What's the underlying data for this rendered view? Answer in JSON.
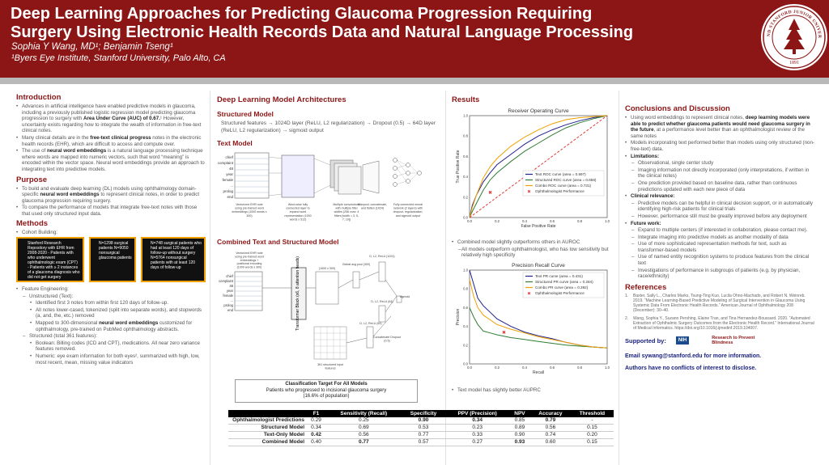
{
  "header": {
    "title": "Deep Learning Approaches for Predicting Glaucoma Progression Requiring Surgery Using Electronic Health Records Data and Natural Language Processing",
    "authors": "Sophia Y Wang, MD¹; Benjamin Tseng¹",
    "affiliation": "¹Byers Eye Institute, Stanford University, Palo Alto, CA",
    "seal_text": "LELAND STANFORD JUNIOR UNIVERSITY",
    "seal_year": "1891"
  },
  "intro": {
    "title": "Introduction",
    "bullets": [
      "Advances in artificial intelligence have enabled predictive models in glaucoma, including a previously published logistic regression model predicting glaucoma progression to surgery with Area Under Curve (AUC) of 0.67.¹ However, uncertainty exists regarding how to integrate the wealth of information in free-text clinical notes.",
      "Many clinical details are in the free-text clinical progress notes in the electronic health records (EHR), which are difficult to access and compute over.",
      "The use of neural word embeddings is a natural language processing technique where words are mapped into numeric vectors, such that word “meaning” is encoded within the vector space. Neural word embeddings provide an approach to integrating text into predictive models."
    ]
  },
  "purpose": {
    "title": "Purpose",
    "bullets": [
      "To build and evaluate deep learning (DL) models using ophthalmology domain-specific neural word embeddings to represent clinical notes, in order to predict glaucoma progression requiring surgery.",
      "To compare the performance of models that integrate free-text notes with those that used only structured input data."
    ]
  },
  "methods": {
    "title": "Methods",
    "cohort_label": "Cohort Building:",
    "cohort_box1": "Stanford Research Repository with EHR from 2008-2020 - Patients with who underwent ophthalmologic exam (CPT) - Patients with ≥ 2 instances of a glaucoma diagnosis who did not get surgery",
    "cohort_box2": "N=1298 surgical patients N=9050 nonsurgical glaucoma patients",
    "cohort_box3": "N=748 surgical patients who had at least 120 days of follow-up without surgery N=5764 nonsurgical patients with at least 120 days of follow-up",
    "fe_label": "Feature Engineering:",
    "unstructured_label": "Unstructured (Text):",
    "unstructured": [
      "Identified first 3 notes from within first 120 days of follow-up.",
      "All notes lower-cased, tokenized (split into separate words), and stopwords (a, and, the, etc.) removed",
      "Mapped to 300-dimensional neural word embeddings customized for ophthalmology, pre-trained on PubMed ophthalmology abstracts."
    ],
    "structured_label": "Structured (total 361 features):",
    "structured": [
      "Boolean: Billing codes (ICD and CPT), medications. All near zero variance features removed.",
      "Numeric: eye exam information for both eyes², summarized with high, low, most recent, mean, missing value indicators"
    ]
  },
  "architectures": {
    "title": "Deep Learning Model Architectures",
    "structured_title": "Structured Model",
    "structured_flow": "Structured features → 1024D layer (ReLU, L2 regularization) → Dropout (0.5) → 64D layer (ReLU, L2 regularization) → sigmoid output",
    "text_title": "Text Model",
    "text_words": [
      "chief",
      "complaint",
      "48",
      "year",
      "female",
      "...",
      "prolog",
      "end"
    ],
    "text_captions": [
      "Vectorized EHR note using pre-trained word embeddings (1000 words x 300)",
      "Word-wise fully connected layer to expand word representation (1000 words x 512)",
      "Multiple convolutions with multiple filter widths (256 conv. 4 filters [width = 3, 5, 7, 10])",
      "Maxpool, concatenate, and flatten (1024)",
      "Fully connected neural network (2 layers) with dropout, regularization, and sigmoid output"
    ],
    "combined_title": "Combined Text and Structured Model",
    "combined_labels": [
      "Vectorized EHR note using pre-trained word embeddings + positional encoding (1000 words x 300)",
      "Transformer Block (x6, 8 attention heads)",
      "(1000 x 300)",
      "Global avg pool (300)",
      "D, L2, ReLU (1024)",
      "D, L2, ReLU (64)",
      "D, L2, ReLU (64)",
      "sigmoid",
      "Concatenate Dropout (0.5)",
      "361 structured input features"
    ],
    "target_title": "Classification Target For All Models",
    "target_line1": "Patients who progressed to incisional glaucoma surgery",
    "target_line2": "(16.6% of population)"
  },
  "results": {
    "title": "Results",
    "roc_note1": "Combined model slightly outperforms others in AUROC",
    "roc_note2": "All models outperform ophthalmologist, who has low sensitivity but relatively high specificity",
    "pr_note": "Text model has slightly better AUPRC"
  },
  "chart_data": [
    {
      "type": "line",
      "title": "Receiver Operating Curve",
      "xlabel": "False Positive Rate",
      "ylabel": "True Positive Rate",
      "xlim": [
        0,
        1
      ],
      "ylim": [
        0,
        1
      ],
      "xticks": [
        "0.0",
        "0.2",
        "0.4",
        "0.6",
        "0.8",
        "1.0"
      ],
      "yticks": [
        "0.0",
        "0.2",
        "0.4",
        "0.6",
        "0.8",
        "1.0"
      ],
      "legend_position": "bottom-right",
      "series": [
        {
          "name": "Text ROC curve (area = 0.697)",
          "color": "#1f1f8f",
          "x": [
            0,
            0.02,
            0.05,
            0.1,
            0.15,
            0.2,
            0.3,
            0.4,
            0.5,
            0.6,
            0.7,
            0.8,
            0.9,
            1
          ],
          "y": [
            0,
            0.12,
            0.22,
            0.35,
            0.44,
            0.52,
            0.62,
            0.72,
            0.8,
            0.86,
            0.91,
            0.95,
            0.98,
            1
          ]
        },
        {
          "name": "Structured ROC curve (area = 0.658)",
          "color": "#2e7d32",
          "x": [
            0,
            0.02,
            0.05,
            0.1,
            0.15,
            0.2,
            0.3,
            0.4,
            0.5,
            0.6,
            0.7,
            0.8,
            0.9,
            1
          ],
          "y": [
            0,
            0.06,
            0.14,
            0.27,
            0.37,
            0.44,
            0.55,
            0.65,
            0.73,
            0.81,
            0.88,
            0.93,
            0.97,
            1
          ]
        },
        {
          "name": "Combo ROC curve (area = 0.731)",
          "color": "#f0a000",
          "x": [
            0,
            0.02,
            0.05,
            0.1,
            0.15,
            0.2,
            0.3,
            0.4,
            0.5,
            0.6,
            0.7,
            0.8,
            0.9,
            1
          ],
          "y": [
            0,
            0.1,
            0.22,
            0.39,
            0.5,
            0.58,
            0.7,
            0.79,
            0.86,
            0.92,
            0.96,
            0.98,
            0.99,
            1
          ]
        },
        {
          "name": "",
          "color": "#e53935",
          "dashed": true,
          "x": [
            0,
            1
          ],
          "y": [
            0,
            1
          ]
        }
      ],
      "points": [
        {
          "name": "Ophthalmologist Performance",
          "x": 0.15,
          "y": 0.25,
          "color": "#e53935"
        }
      ]
    },
    {
      "type": "line",
      "title": "Precision Recall Curve",
      "xlabel": "Recall",
      "ylabel": "Precision",
      "xlim": [
        0,
        1
      ],
      "ylim": [
        0,
        1
      ],
      "xticks": [
        "0.0",
        "0.2",
        "0.4",
        "0.6",
        "0.8",
        "1.0"
      ],
      "yticks": [
        "0.0",
        "0.2",
        "0.4",
        "0.6",
        "0.8",
        "1.0"
      ],
      "legend_position": "top-right",
      "series": [
        {
          "name": "Text PR curve (area = 0.431)",
          "color": "#1f1f8f",
          "x": [
            0,
            0.03,
            0.06,
            0.1,
            0.15,
            0.2,
            0.3,
            0.4,
            0.5,
            0.6,
            0.7,
            0.8,
            0.9,
            1
          ],
          "y": [
            1,
            0.85,
            0.7,
            0.62,
            0.55,
            0.48,
            0.4,
            0.34,
            0.3,
            0.27,
            0.23,
            0.2,
            0.18,
            0.17
          ]
        },
        {
          "name": "Structured PR curve (area = 0.284)",
          "color": "#2e7d32",
          "x": [
            0,
            0.03,
            0.06,
            0.1,
            0.15,
            0.2,
            0.3,
            0.4,
            0.5,
            0.6,
            0.7,
            0.8,
            0.9,
            1
          ],
          "y": [
            0.6,
            0.5,
            0.42,
            0.35,
            0.33,
            0.31,
            0.28,
            0.26,
            0.24,
            0.22,
            0.2,
            0.19,
            0.18,
            0.17
          ]
        },
        {
          "name": "Combo PR curve (area = 0.392)",
          "color": "#f0a000",
          "x": [
            0,
            0.03,
            0.06,
            0.1,
            0.15,
            0.2,
            0.3,
            0.4,
            0.5,
            0.6,
            0.7,
            0.8,
            0.9,
            1
          ],
          "y": [
            0.9,
            0.72,
            0.6,
            0.52,
            0.47,
            0.42,
            0.37,
            0.33,
            0.29,
            0.26,
            0.23,
            0.2,
            0.18,
            0.17
          ]
        }
      ],
      "points": [
        {
          "name": "Ophthalmologist Performance",
          "x": 0.25,
          "y": 0.34,
          "color": "#e53935"
        }
      ]
    },
    {
      "type": "table",
      "columns": [
        "",
        "F1",
        "Sensitivity (Recall)",
        "Specificity",
        "PPV (Precision)",
        "NPV",
        "Accuracy",
        "Threshold"
      ],
      "rows": [
        [
          "Ophthalmologist Predictions",
          "0.29",
          "0.25",
          "0.90",
          "0.34",
          "0.85",
          "0.79",
          "-"
        ],
        [
          "Structured Model",
          "0.34",
          "0.69",
          "0.53",
          "0.23",
          "0.89",
          "0.56",
          "0.15"
        ],
        [
          "Text-Only Model",
          "0.42",
          "0.56",
          "0.77",
          "0.33",
          "0.90",
          "0.74",
          "0.20"
        ],
        [
          "Combined Model",
          "0.40",
          "0.77",
          "0.57",
          "0.27",
          "0.93",
          "0.60",
          "0.15"
        ]
      ],
      "bold_cells": [
        [
          0,
          3
        ],
        [
          0,
          4
        ],
        [
          0,
          6
        ],
        [
          2,
          1
        ],
        [
          3,
          2
        ],
        [
          3,
          5
        ]
      ]
    }
  ],
  "conclusions": {
    "title": "Conclusions and Discussion",
    "items": [
      {
        "lvl": 1,
        "text": "Using word embeddings to represent clinical notes, deep learning models were able to predict whether glaucoma patients would need glaucoma surgery in the future, at a performance level better than an ophthalmologist review of the same notes"
      },
      {
        "lvl": 1,
        "text": "Models incorporating text performed better than models using only structured (non-free-text) data."
      },
      {
        "lvl": 1,
        "text": "Limitations:"
      },
      {
        "lvl": 2,
        "text": "Observational, single center study"
      },
      {
        "lvl": 2,
        "text": "Imaging information not directly incorporated (only interpretations, if written in the clinical notes)"
      },
      {
        "lvl": 2,
        "text": "One prediction provided based on baseline data, rather than continuous predictions updated with each new piece of data"
      },
      {
        "lvl": 1,
        "text": "Clinical relevance:"
      },
      {
        "lvl": 2,
        "text": "Predictive models can be helpful in clinical decision support, or in automatically identifying high-risk patients for clinical trials"
      },
      {
        "lvl": 2,
        "text": "However, performance still must be greatly improved before any deployment"
      },
      {
        "lvl": 1,
        "text": "Future work:"
      },
      {
        "lvl": 2,
        "text": "Expand to multiple centers (if interested in collaboration, please contact me)."
      },
      {
        "lvl": 2,
        "text": "Integrate imaging into predictive models as another modality of data"
      },
      {
        "lvl": 2,
        "text": "Use of more sophisticated representation methods for text, such as transformer-based models"
      },
      {
        "lvl": 2,
        "text": "Use of named entity recognition systems to produce features from the clinical text"
      },
      {
        "lvl": 2,
        "text": "Investigations of performance in subgroups of patients (e.g. by physician, race/ethnicity)"
      }
    ]
  },
  "references": {
    "title": "References",
    "items": [
      "Baxter, Sally L., Charles Marks, Tsung-Ting Kuo, Lucila Ohno-Machado, and Robert N. Weinreb. 2019. “Machine Learning-Based Predictive Modeling of Surgical Intervention in Glaucoma Using Systemic Data From Electronic Health Records.” American Journal of Ophthalmology 208 (December): 30–40.",
      "Wang, Sophia Y., Suzann Pershing, Elaine Tran, and Tina Hernandez-Boussard. 2020. “Automated Extraction of Ophthalmic Surgery Outcomes from the Electronic Health Record.” International Journal of Medical Informatics. https://doi.org/10.1016/j.ijmedinf.2019.104007."
    ]
  },
  "footer": {
    "supported": "Supported by:",
    "nih": "NIH",
    "rpb": "Research to Prevent Blindness",
    "email": "Email sywang@stanford.edu for more information.",
    "coi": "Authors have no conflicts of interest to disclose."
  }
}
